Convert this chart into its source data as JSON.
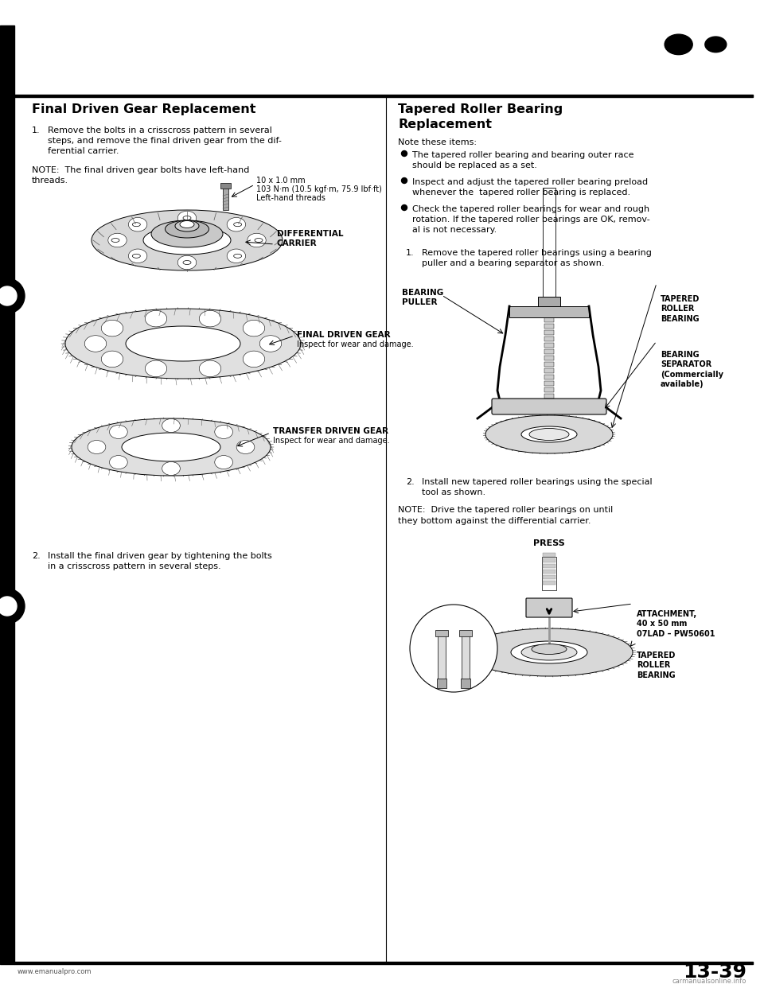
{
  "page_number": "13-39",
  "bg": "#ffffff",
  "tc": "#000000",
  "left_title": "Final Driven Gear Replacement",
  "right_title_line1": "Tapered Roller Bearing",
  "right_title_line2": "Replacement",
  "left_step1": "Remove the bolts in a crisscross pattern in several\nsteps, and remove the final driven gear from the dif-\nferential carrier.",
  "left_note": "NOTE:  The final driven gear bolts have left-hand\nthreads.",
  "label_bolt_spec": "10 x 1.0 mm",
  "label_bolt_torque": "103 N·m (10.5 kgf·m, 75.9 lbf·ft)",
  "label_bolt_thread": "Left-hand threads",
  "label_diff_carrier": "DIFFERENTIAL\nCARRIER",
  "label_final_gear": "FINAL DRIVEN GEAR",
  "label_final_gear2": "Inspect for wear and damage.",
  "label_transfer_gear": "TRANSFER DRIVEN GEAR",
  "label_transfer_gear2": "Inspect for wear and damage.",
  "left_step2": "Install the final driven gear by tightening the bolts\nin a crisscross pattern in several steps.",
  "right_note_header": "Note these items:",
  "right_bullet1": "The tapered roller bearing and bearing outer race\nshould be replaced as a set.",
  "right_bullet2": "Inspect and adjust the tapered roller bearing preload\nwhenever the  tapered roller bearing is replaced.",
  "right_bullet3": "Check the tapered roller bearings for wear and rough\nrotation. If the tapered roller bearings are OK, remov-\nal is not necessary.",
  "right_step1": "Remove the tapered roller bearings using a bearing\npuller and a bearing separator as shown.",
  "label_bearing_puller": "BEARING\nPULLER",
  "label_bearing_sep": "BEARING\nSEPARATOR\n(Commercially\navailable)",
  "label_tapered1": "TAPERED\nROLLER\nBEARING",
  "right_step2": "Install new tapered roller bearings using the special\ntool as shown.",
  "right_note2_line1": "NOTE:  Drive the tapered roller bearings on until",
  "right_note2_line2": "they bottom against the differential carrier.",
  "label_press": "PRESS",
  "label_attachment": "ATTACHMENT,\n40 x 50 mm\n07LAD – PW50601",
  "label_tapered2": "TAPERED\nROLLER\nBEARING",
  "footer_left": "www.emanualpro.com",
  "footer_right": "carmanualsonline.info",
  "tfs": 11.5,
  "bfs": 8.0,
  "lfs": 7.5,
  "sfs": 6.5
}
